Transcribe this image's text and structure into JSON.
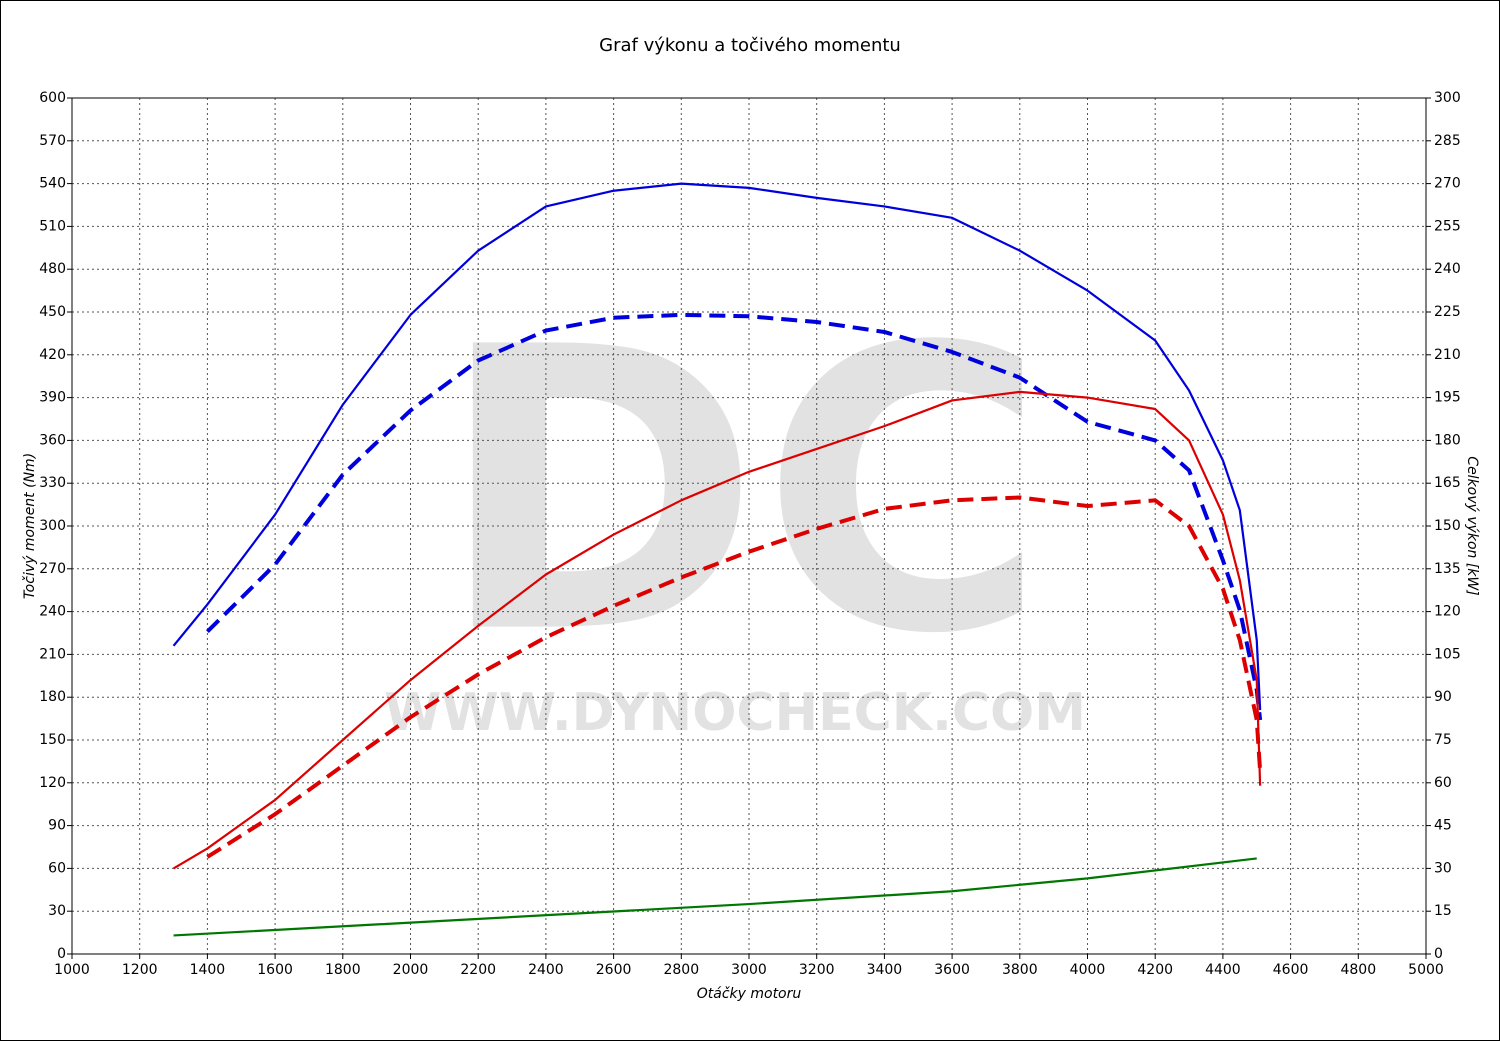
{
  "chart_data": {
    "type": "line",
    "title": "Graf výkonu a točivého momentu",
    "xlabel": "Otáčky motoru",
    "ylabel": "Točivý moment (Nm)",
    "y2label": "Celkový výkon [kW]",
    "watermark": {
      "logo": "DC",
      "url": "WWW.DYNOCHECK.COM"
    },
    "grid": true,
    "xlim": [
      1000,
      5000
    ],
    "xticks": [
      1000,
      1200,
      1400,
      1600,
      1800,
      2000,
      2200,
      2400,
      2600,
      2800,
      3000,
      3200,
      3400,
      3600,
      3800,
      4000,
      4200,
      4400,
      4600,
      4800,
      5000
    ],
    "ylim": [
      0,
      600
    ],
    "yticks": [
      0,
      30,
      60,
      90,
      120,
      150,
      180,
      210,
      240,
      270,
      300,
      330,
      360,
      390,
      420,
      450,
      480,
      510,
      540,
      570,
      600
    ],
    "y2lim": [
      0,
      300
    ],
    "y2ticks": [
      0,
      15,
      30,
      45,
      60,
      75,
      90,
      105,
      120,
      135,
      150,
      165,
      180,
      195,
      210,
      225,
      240,
      255,
      270,
      285,
      300
    ],
    "series": [
      {
        "color": "#0000dd",
        "dash": false,
        "x": [
          1300,
          1400,
          1600,
          1800,
          2000,
          2200,
          2400,
          2600,
          2800,
          3000,
          3200,
          3400,
          3600,
          3800,
          4000,
          4200,
          4300,
          4400,
          4450,
          4500,
          4510
        ],
        "values": [
          216,
          245,
          308,
          385,
          448,
          493,
          524,
          535,
          540,
          537,
          530,
          524,
          516,
          493,
          465,
          430,
          395,
          346,
          311,
          220,
          171
        ]
      },
      {
        "color": "#0000dd",
        "dash": true,
        "x": [
          1400,
          1600,
          1800,
          2000,
          2200,
          2400,
          2600,
          2800,
          3000,
          3200,
          3400,
          3600,
          3800,
          4000,
          4200,
          4300,
          4400,
          4450,
          4500,
          4510
        ],
        "values": [
          226,
          273,
          336,
          381,
          416,
          437,
          446,
          448,
          447,
          443,
          436,
          422,
          404,
          373,
          360,
          339,
          276,
          241,
          185,
          164
        ]
      },
      {
        "color": "#dd0000",
        "dash": false,
        "axis": "y2",
        "x": [
          1300,
          1400,
          1600,
          1800,
          2000,
          2200,
          2400,
          2600,
          2800,
          3000,
          3200,
          3400,
          3600,
          3800,
          4000,
          4200,
          4300,
          4400,
          4450,
          4500,
          4510
        ],
        "values": [
          30,
          37,
          54,
          75,
          96,
          115,
          133,
          147,
          159,
          169,
          177,
          185,
          194,
          197,
          195,
          191,
          180,
          154,
          131,
          96,
          59
        ]
      },
      {
        "color": "#dd0000",
        "dash": true,
        "axis": "y2",
        "x": [
          1400,
          1600,
          1800,
          2000,
          2200,
          2400,
          2600,
          2800,
          3000,
          3200,
          3400,
          3600,
          3800,
          4000,
          4200,
          4300,
          4400,
          4450,
          4500,
          4510
        ],
        "values": [
          34,
          49,
          66,
          83,
          98,
          111,
          122,
          132,
          141,
          149,
          156,
          159,
          160,
          157,
          159,
          150,
          128,
          110,
          82,
          64
        ]
      },
      {
        "color": "#007700",
        "dash": false,
        "axis": "y2",
        "x": [
          1300,
          2000,
          3000,
          3600,
          4000,
          4500
        ],
        "values": [
          6.5,
          11,
          17.5,
          22,
          26.5,
          33.5
        ]
      }
    ]
  }
}
